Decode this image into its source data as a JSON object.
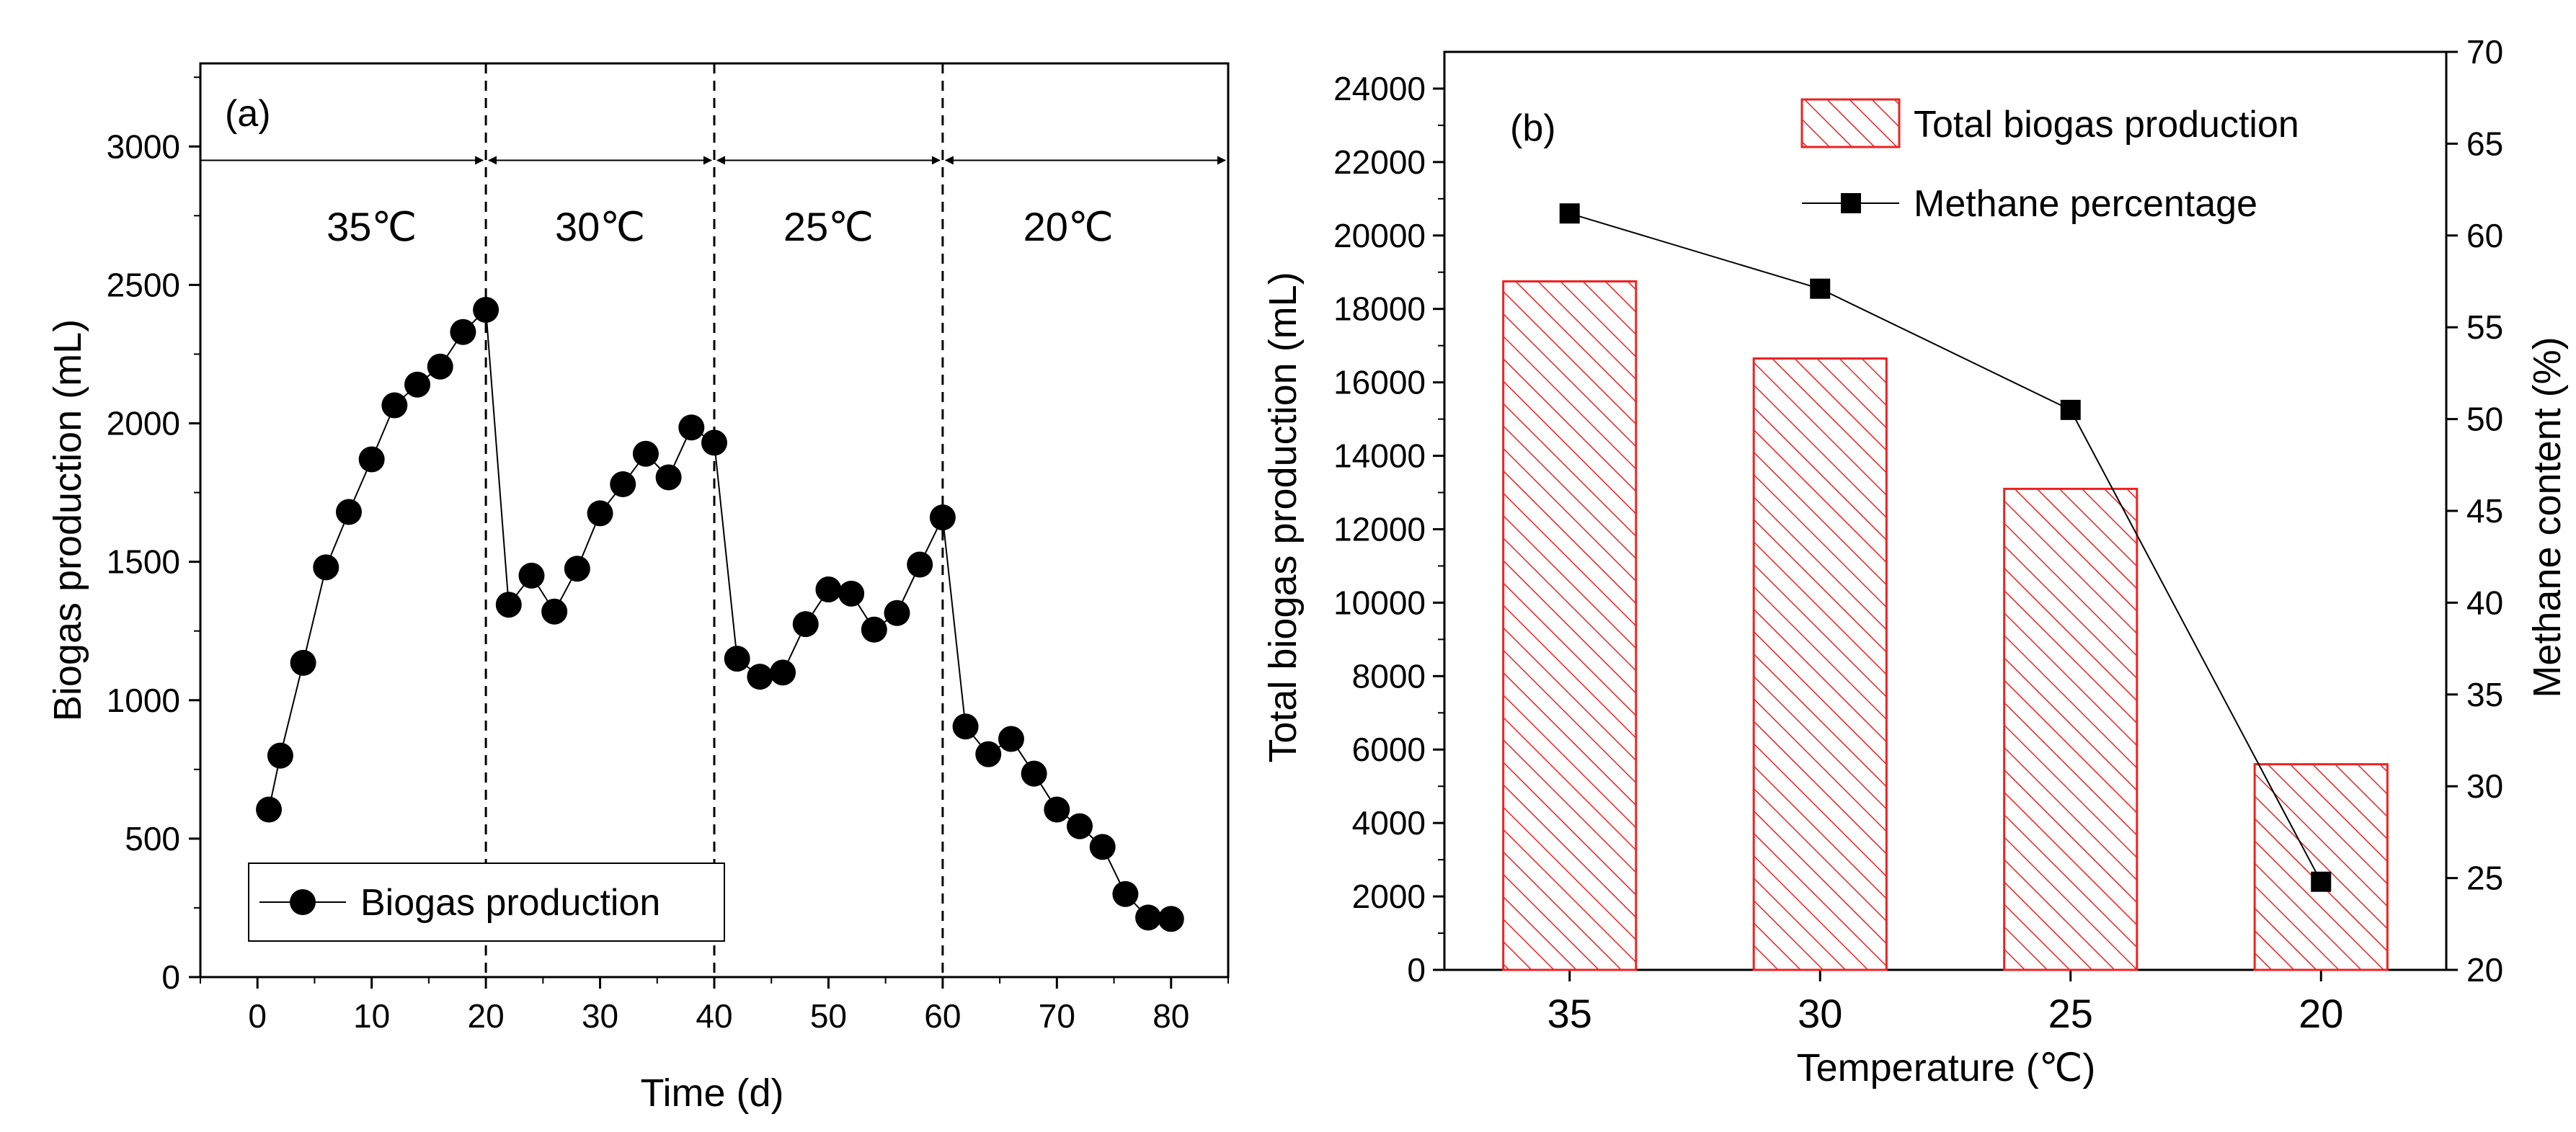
{
  "chart_data": [
    {
      "type": "scatter",
      "panel_label": "(a)",
      "xlabel": "Time (d)",
      "ylabel": "Biogas production (mL)",
      "xlim": [
        -5,
        85
      ],
      "ylim": [
        0,
        3300
      ],
      "xticks": [
        0,
        10,
        20,
        30,
        40,
        50,
        60,
        70,
        80
      ],
      "yticks": [
        0,
        500,
        1000,
        1500,
        2000,
        2500,
        3000
      ],
      "dividers_x": [
        20,
        40,
        60
      ],
      "period_arrow_y": 2950,
      "periods": [
        {
          "label": "35℃",
          "x": 10
        },
        {
          "label": "30℃",
          "x": 30
        },
        {
          "label": "25℃",
          "x": 50
        },
        {
          "label": "20℃",
          "x": 71
        }
      ],
      "legend": "Biogas production",
      "series": [
        {
          "name": "Biogas production",
          "x": [
            1,
            2,
            4,
            6,
            8,
            10,
            12,
            14,
            16,
            18,
            20,
            22,
            24,
            26,
            28,
            30,
            32,
            34,
            36,
            38,
            40,
            42,
            44,
            46,
            48,
            50,
            52,
            54,
            56,
            58,
            60,
            62,
            64,
            66,
            68,
            70,
            72,
            74,
            76,
            78,
            80
          ],
          "y": [
            605,
            800,
            1135,
            1480,
            1680,
            1870,
            2065,
            2140,
            2205,
            2330,
            2410,
            1345,
            1450,
            1320,
            1475,
            1675,
            1780,
            1890,
            1805,
            1985,
            1930,
            1150,
            1085,
            1100,
            1275,
            1400,
            1385,
            1255,
            1315,
            1490,
            1660,
            905,
            805,
            860,
            735,
            605,
            545,
            470,
            300,
            215,
            210
          ]
        }
      ]
    },
    {
      "type": "bar",
      "panel_label": "(b)",
      "xlabel": "Temperature (℃)",
      "ylabel": "Total biogas production (mL)",
      "y2label": "Methane content (%)",
      "categories": [
        "35",
        "30",
        "25",
        "20"
      ],
      "ylim": [
        0,
        25000
      ],
      "y2lim": [
        20,
        70
      ],
      "yticks": [
        0,
        2000,
        4000,
        6000,
        8000,
        10000,
        12000,
        14000,
        16000,
        18000,
        20000,
        22000,
        24000
      ],
      "y2ticks": [
        20,
        25,
        30,
        35,
        40,
        45,
        50,
        55,
        60,
        65,
        70
      ],
      "series": [
        {
          "name": "Total biogas production",
          "axis": "left",
          "values": [
            18750,
            16650,
            13100,
            5600
          ]
        },
        {
          "name": "Methane percentage",
          "axis": "right",
          "values": [
            61.2,
            57.1,
            50.5,
            24.8
          ]
        }
      ],
      "legend": [
        "Total biogas production",
        "Methane percentage"
      ]
    }
  ],
  "colors": {
    "axis": "#000000",
    "bar_hatch": "#ee2222",
    "marker": "#000000",
    "divider": "#000000"
  }
}
